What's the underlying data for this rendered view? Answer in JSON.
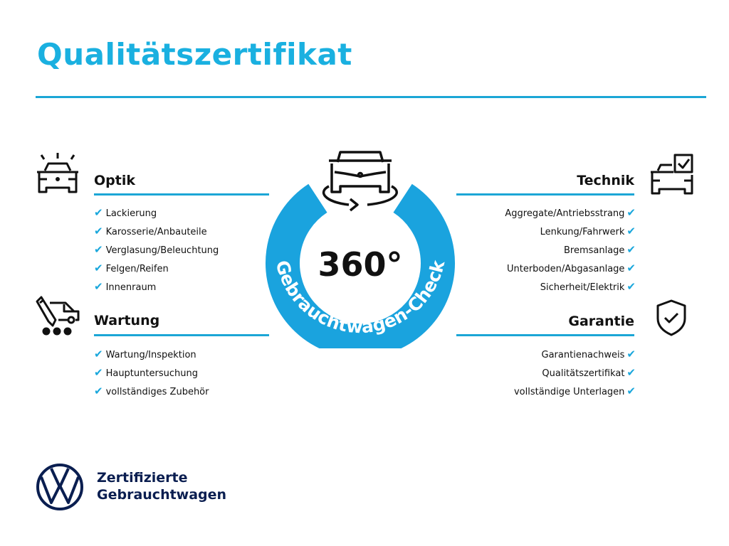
{
  "title": "Qualitätszertifikat",
  "center": {
    "value": "360°",
    "arc_text": "Gebrauchtwagen-Check",
    "ring_color": "#1aa3de"
  },
  "sections": {
    "optik": {
      "title": "Optik",
      "icon": "car-lights-icon",
      "items": [
        "Lackierung",
        "Karosserie/Anbauteile",
        "Verglasung/Beleuchtung",
        "Felgen/Reifen",
        "Innenraum"
      ]
    },
    "wartung": {
      "title": "Wartung",
      "icon": "car-maintenance-icon",
      "items": [
        "Wartung/Inspektion",
        "Hauptuntersuchung",
        "vollständiges Zubehör"
      ]
    },
    "technik": {
      "title": "Technik",
      "icon": "car-checkbox-icon",
      "items": [
        "Aggregate/Antriebsstrang",
        "Lenkung/Fahrwerk",
        "Bremsanlage",
        "Unterboden/Abgasanlage",
        "Sicherheit/Elektrik"
      ]
    },
    "garantie": {
      "title": "Garantie",
      "icon": "shield-check-icon",
      "items": [
        "Garantienachweis",
        "Qualitätszertifikat",
        "vollständige Unterlagen"
      ]
    }
  },
  "check_mark": "✔",
  "brand": {
    "line1": "Zertifizierte",
    "line2": "Gebrauchtwagen",
    "color": "#0a1e50"
  },
  "accent_color": "#1ab0e0"
}
